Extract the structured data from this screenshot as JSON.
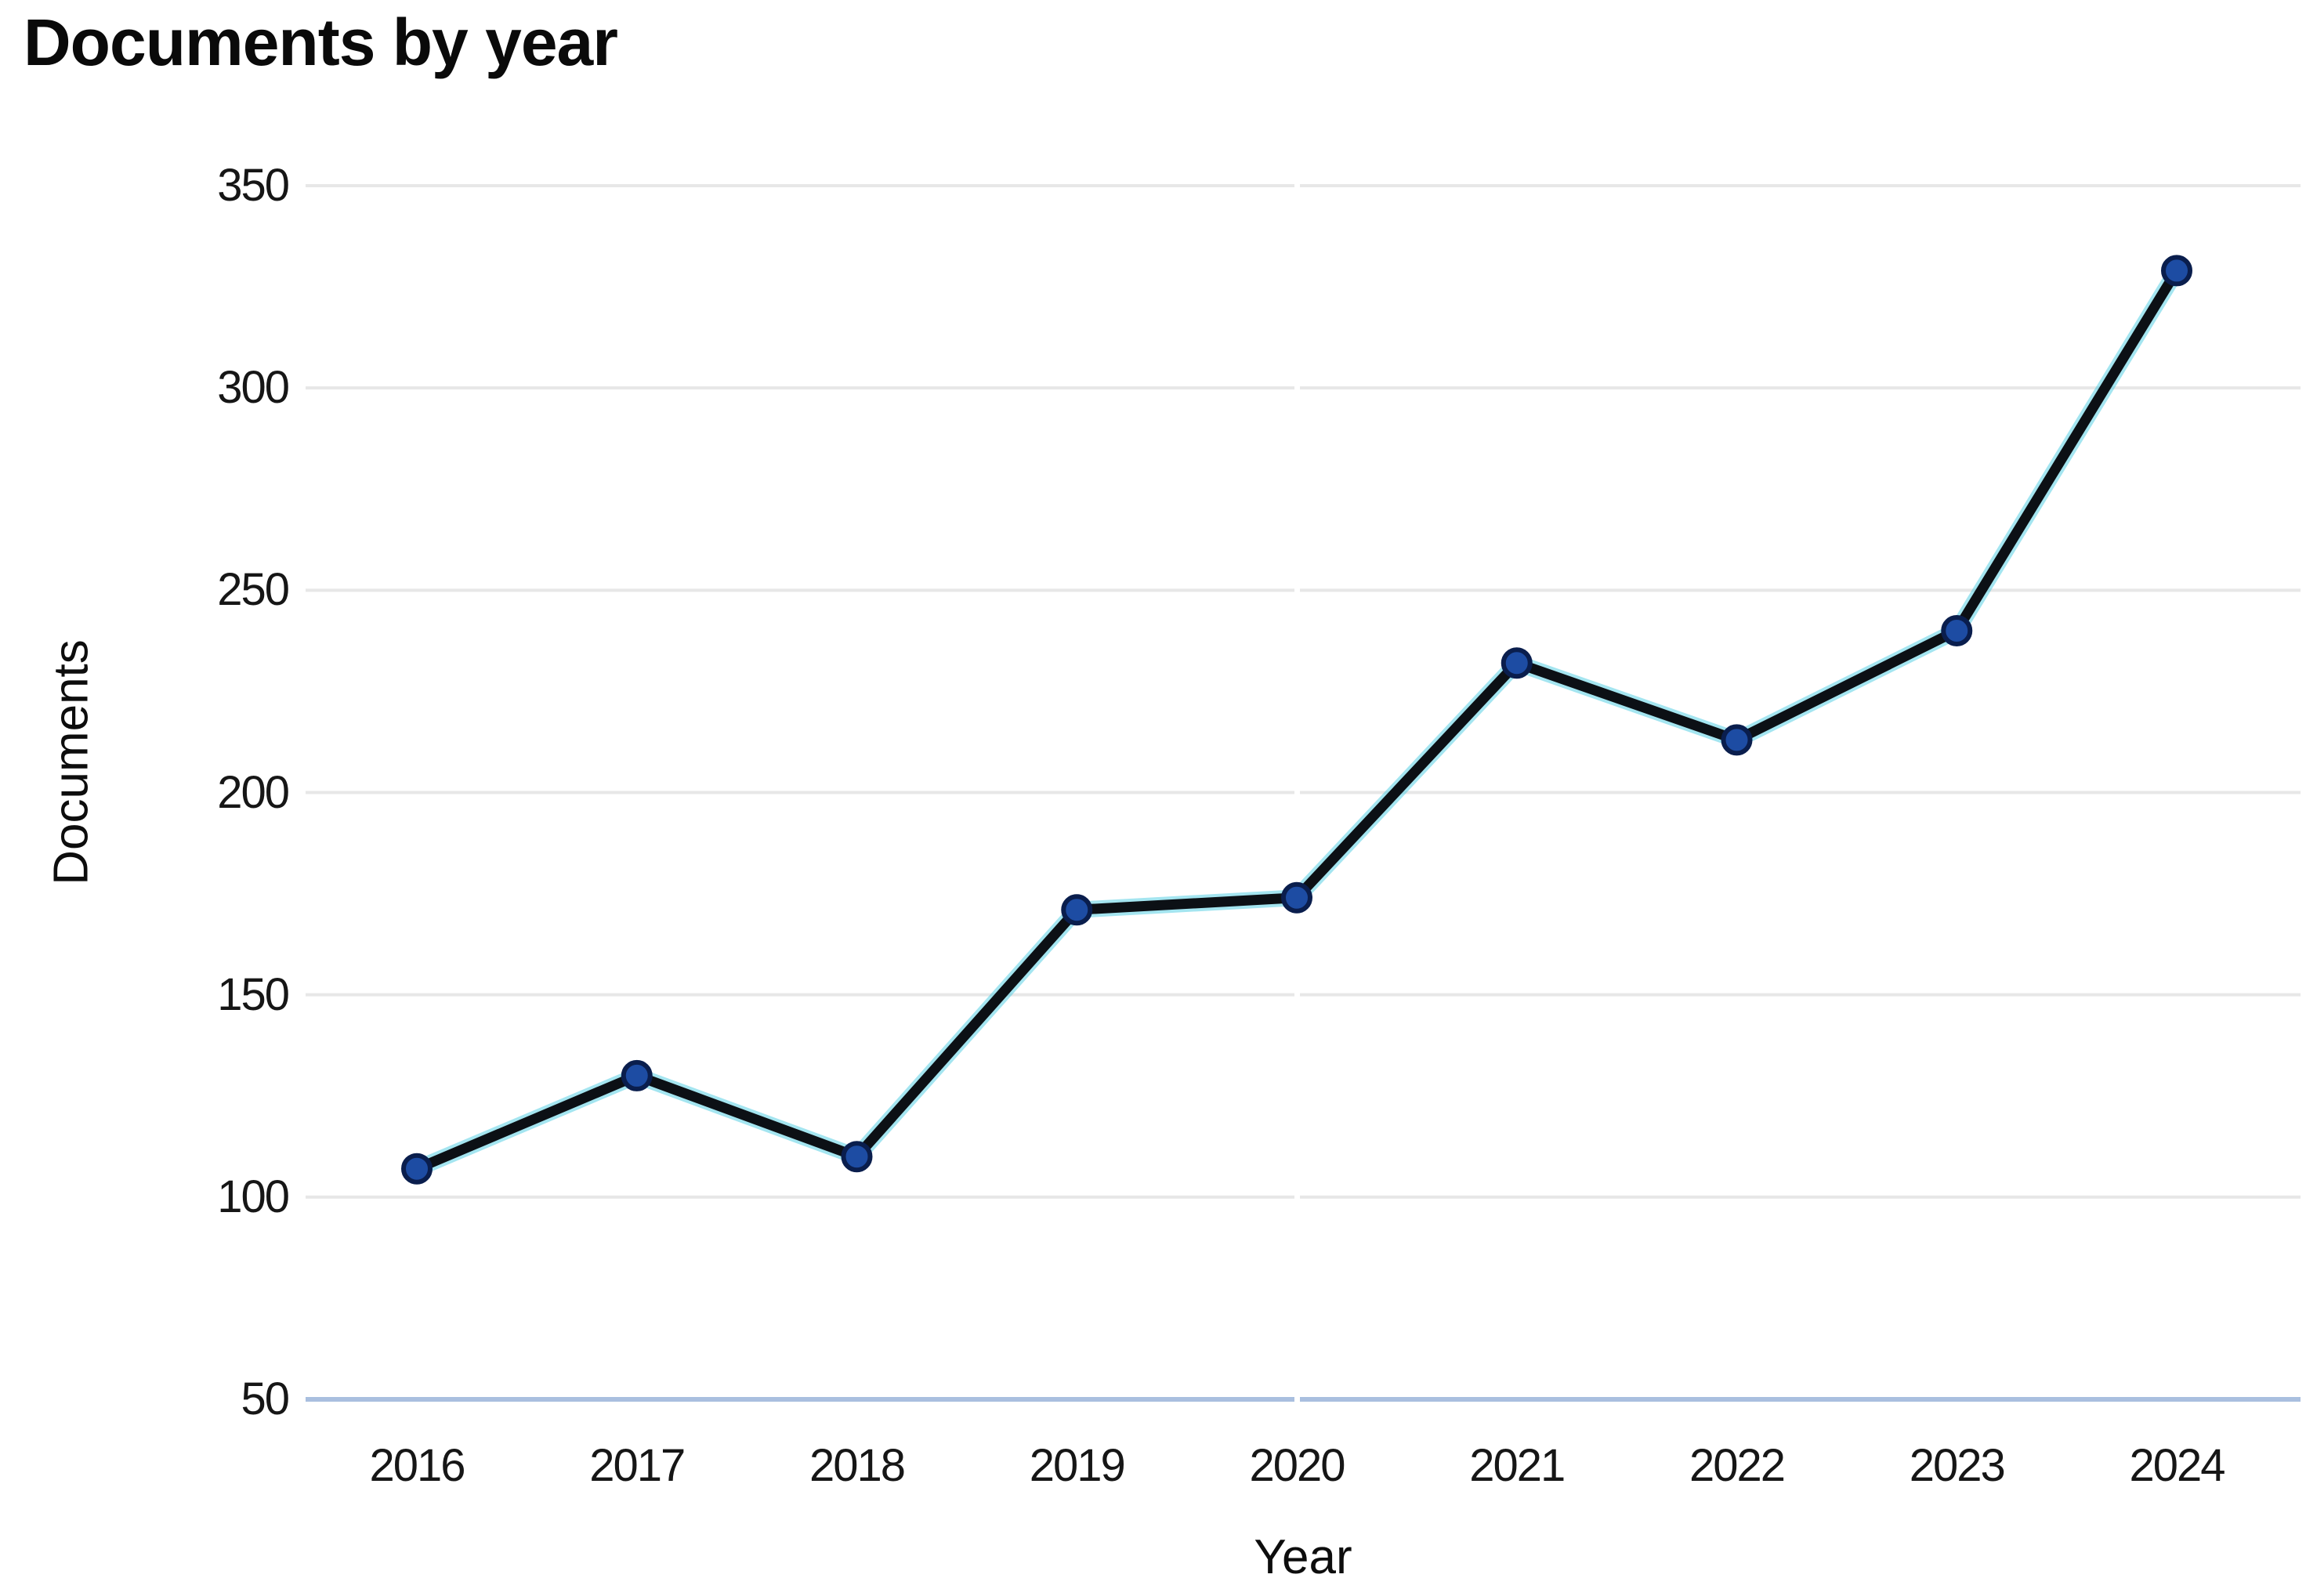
{
  "chart_data": {
    "type": "line",
    "title": "Documents by year",
    "xlabel": "Year",
    "ylabel": "Documents",
    "x": [
      2016,
      2017,
      2018,
      2019,
      2020,
      2021,
      2022,
      2023,
      2024
    ],
    "series": [
      {
        "name": "Documents",
        "values": [
          107,
          130,
          110,
          171,
          174,
          232,
          213,
          240,
          329
        ]
      }
    ],
    "ylim": [
      50,
      350
    ],
    "yticks": [
      350,
      300,
      250,
      200,
      150,
      100,
      50
    ],
    "grid": "horizontal",
    "legend": "none",
    "colors": {
      "line": "#0c1015",
      "line_fringe": "#35c5dd",
      "marker_fill": "#1d4ca3",
      "marker_edge": "#0a1e4d",
      "gridline": "#e7e7e7",
      "baseline_axis": "#a9bfdf",
      "text": "#111111",
      "background": "#ffffff"
    }
  }
}
